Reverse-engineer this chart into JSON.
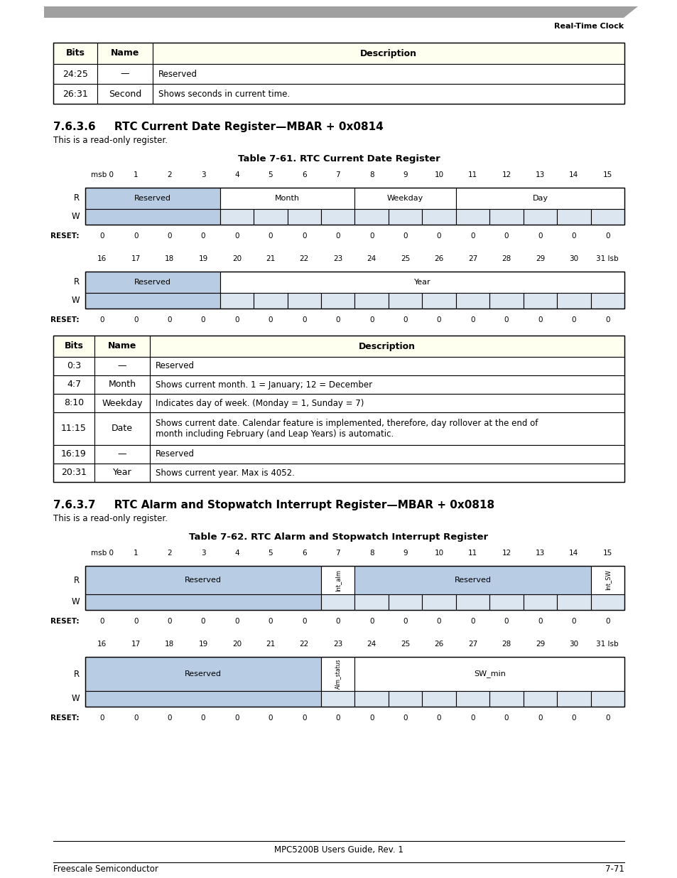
{
  "page_bg": "#ffffff",
  "header_text": "Real-Time Clock",
  "section_title_1": "7.6.3.6     RTC Current Date Register—MBAR + 0x0814",
  "section_subtitle_1": "This is a read-only register.",
  "table_title_1": "Table 7-61. RTC Current Date Register",
  "section_title_2": "7.6.3.7     RTC Alarm and Stopwatch Interrupt Register—MBAR + 0x0818",
  "section_subtitle_2": "This is a read-only register.",
  "table_title_2": "Table 7-62. RTC Alarm and Stopwatch Interrupt Register",
  "table_header_bg": "#fffff0",
  "reserved_bg": "#b8cce4",
  "field_bg": "#dce6f1",
  "white_bg": "#ffffff",
  "footer_text": "MPC5200B Users Guide, Rev. 1",
  "footer_left": "Freescale Semiconductor",
  "footer_right": "7-71",
  "prev_table_rows": [
    [
      "24:25",
      "—",
      "Reserved"
    ],
    [
      "26:31",
      "Second",
      "Shows seconds in current time."
    ]
  ],
  "date_reg_table_rows": [
    [
      "0:3",
      "—",
      "Reserved"
    ],
    [
      "4:7",
      "Month",
      "Shows current month. 1 = January; 12 = December"
    ],
    [
      "8:10",
      "Weekday",
      "Indicates day of week. (Monday = 1, Sunday = 7)"
    ],
    [
      "11:15",
      "Date",
      "Shows current date. Calendar feature is implemented, therefore, day rollover at the end of\nmonth including February (and Leap Years) is automatic."
    ],
    [
      "16:19",
      "—",
      "Reserved"
    ],
    [
      "20:31",
      "Year",
      "Shows current year. Max is 4052."
    ]
  ],
  "bit_labels_0_15": [
    "msb 0",
    "1",
    "2",
    "3",
    "4",
    "5",
    "6",
    "7",
    "8",
    "9",
    "10",
    "11",
    "12",
    "13",
    "14",
    "15"
  ],
  "bit_labels_16_31": [
    "16",
    "17",
    "18",
    "19",
    "20",
    "21",
    "22",
    "23",
    "24",
    "25",
    "26",
    "27",
    "28",
    "29",
    "30",
    "31 lsb"
  ]
}
